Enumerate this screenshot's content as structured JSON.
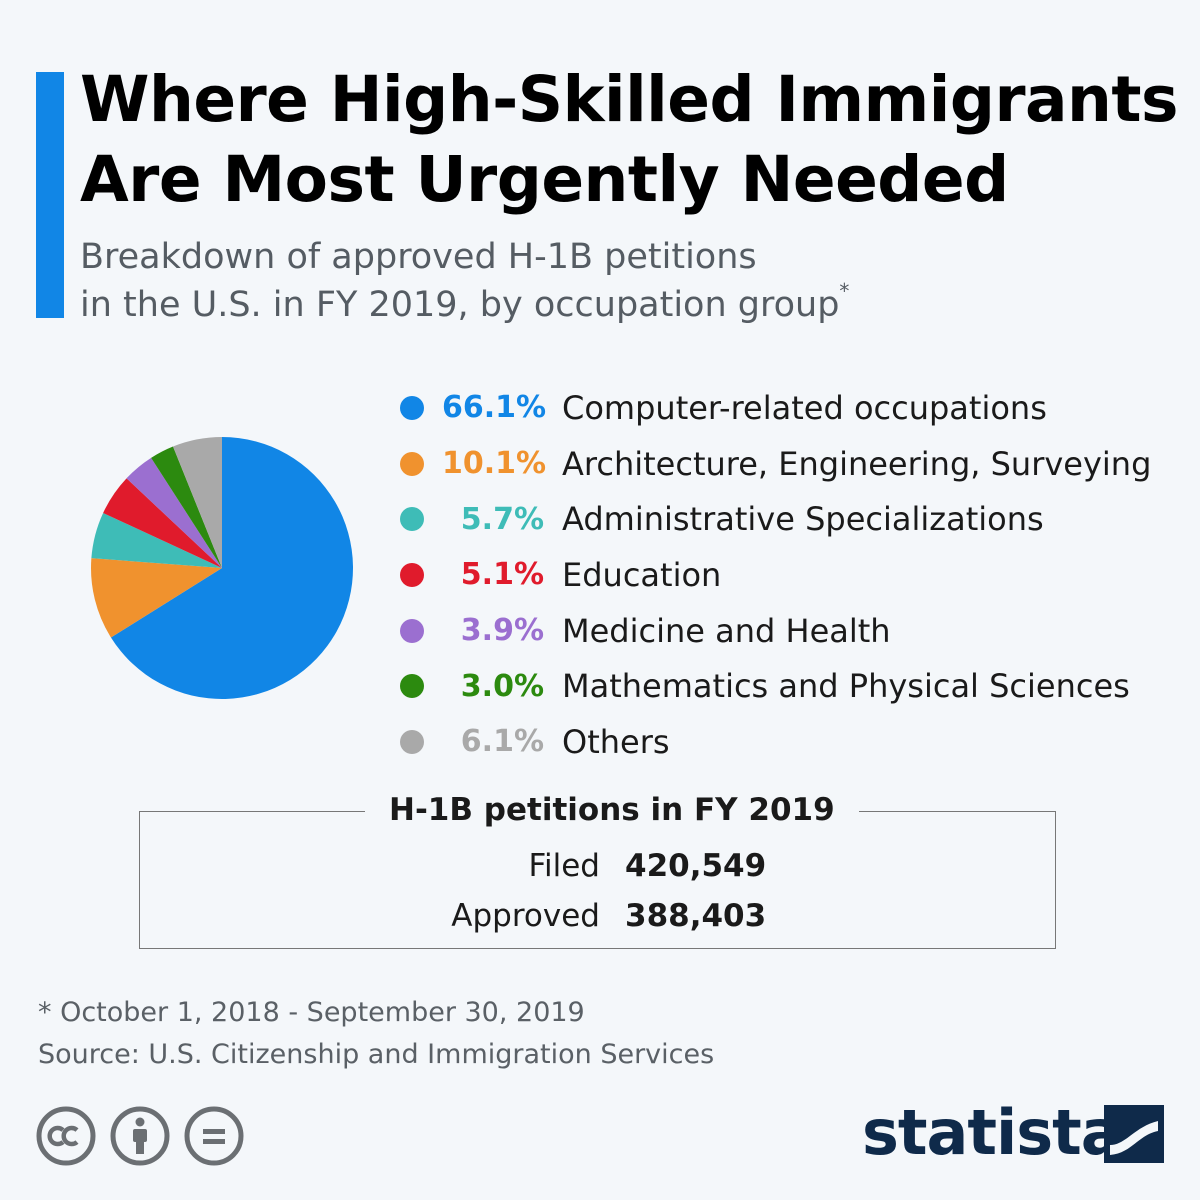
{
  "header": {
    "title_line1": "Where High-Skilled Immigrants",
    "title_line2": "Are Most Urgently Needed",
    "subtitle_line1": "Breakdown of approved H-1B petitions",
    "subtitle_line2": "in the U.S. in FY 2019, by occupation group",
    "subtitle_marker": "*"
  },
  "chart_data": {
    "type": "pie",
    "start_angle": "12 o'clock",
    "direction": "clockwise",
    "slices": [
      {
        "value": 66.1,
        "value_label": "66.1%",
        "label": "Computer-related occupations",
        "color": "#1186e6"
      },
      {
        "value": 10.1,
        "value_label": "10.1%",
        "label": "Architecture, Engineering, Surveying",
        "color": "#f0922e"
      },
      {
        "value": 5.7,
        "value_label": "5.7%",
        "label": "Administrative Specializations",
        "color": "#3ebcb7"
      },
      {
        "value": 5.1,
        "value_label": "5.1%",
        "label": "Education",
        "color": "#e01b2c"
      },
      {
        "value": 3.9,
        "value_label": "3.9%",
        "label": "Medicine and Health",
        "color": "#9b6fd0"
      },
      {
        "value": 3.0,
        "value_label": "3.0%",
        "label": "Mathematics and Physical Sciences",
        "color": "#2c8a0f"
      },
      {
        "value": 6.1,
        "value_label": "6.1%",
        "label": "Others",
        "color": "#a9a9a9"
      }
    ]
  },
  "summary": {
    "title": "H-1B petitions in FY 2019",
    "filed_label": "Filed",
    "filed_value": "420,549",
    "approved_label": "Approved",
    "approved_value": "388,403"
  },
  "footer": {
    "note": "* October 1, 2018 - September 30, 2019",
    "source": "Source: U.S. Citizenship and Immigration Services",
    "license_icons": [
      "creative-commons-icon",
      "attribution-icon",
      "no-derivatives-icon"
    ],
    "brand": "statista"
  }
}
